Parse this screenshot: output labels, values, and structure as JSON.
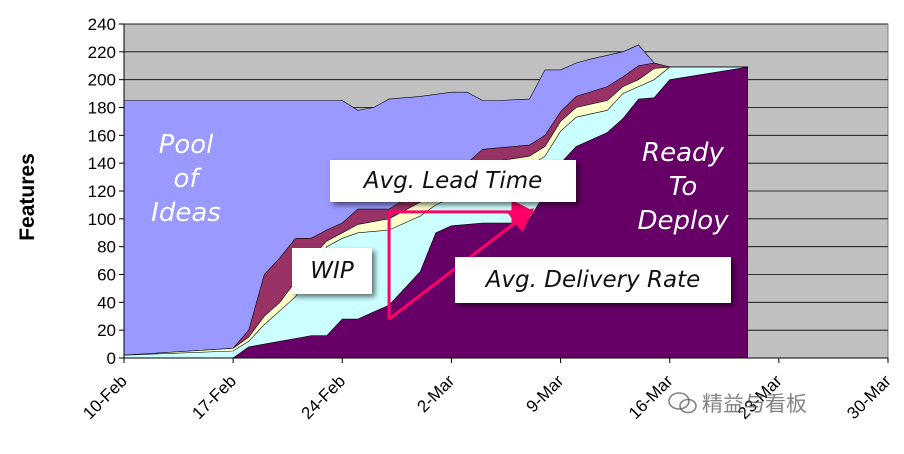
{
  "chart_data": {
    "type": "area",
    "ylabel": "Features",
    "xlabel": "",
    "ylim": [
      0,
      240
    ],
    "yticks": [
      0,
      20,
      40,
      60,
      80,
      100,
      120,
      140,
      160,
      180,
      200,
      220,
      240
    ],
    "categories": [
      "10-Feb",
      "17-Feb",
      "24-Feb",
      "2-Mar",
      "9-Mar",
      "16-Mar",
      "23-Mar",
      "30-Mar"
    ],
    "x_range_days": [
      0,
      49
    ],
    "grid": "horizontal",
    "plot_background": "#c0c0c0",
    "series": [
      {
        "color": "#9999ff",
        "points": [
          [
            0,
            185
          ],
          [
            7,
            185
          ],
          [
            14,
            185
          ],
          [
            15,
            178
          ],
          [
            16,
            180
          ],
          [
            17,
            186
          ],
          [
            19,
            188
          ],
          [
            21,
            191
          ],
          [
            22,
            191
          ],
          [
            23,
            185
          ],
          [
            24,
            185
          ],
          [
            26,
            186
          ],
          [
            27,
            207
          ],
          [
            28,
            207
          ],
          [
            29,
            212
          ],
          [
            30,
            215
          ],
          [
            32,
            220
          ],
          [
            33,
            225
          ],
          [
            34,
            212
          ],
          [
            35,
            209
          ],
          [
            40,
            209
          ]
        ]
      },
      {
        "color": "#993366",
        "points": [
          [
            0,
            2
          ],
          [
            7,
            7
          ],
          [
            8,
            20
          ],
          [
            9,
            60
          ],
          [
            10,
            72
          ],
          [
            11,
            86
          ],
          [
            12,
            86
          ],
          [
            13,
            92
          ],
          [
            14,
            97
          ],
          [
            15,
            107
          ],
          [
            17,
            107
          ],
          [
            19,
            121
          ],
          [
            21,
            130
          ],
          [
            22,
            140
          ],
          [
            23,
            150
          ],
          [
            26,
            153
          ],
          [
            27,
            160
          ],
          [
            28,
            177
          ],
          [
            29,
            188
          ],
          [
            31,
            195
          ],
          [
            32,
            202
          ],
          [
            33,
            210
          ],
          [
            34,
            212
          ],
          [
            35,
            209
          ],
          [
            40,
            209
          ]
        ]
      },
      {
        "color": "#ffffcc",
        "points": [
          [
            0,
            2
          ],
          [
            7,
            7
          ],
          [
            8,
            15
          ],
          [
            9,
            30
          ],
          [
            10,
            40
          ],
          [
            11,
            55
          ],
          [
            12,
            72
          ],
          [
            13,
            84
          ],
          [
            14,
            90
          ],
          [
            15,
            96
          ],
          [
            17,
            100
          ],
          [
            19,
            112
          ],
          [
            21,
            120
          ],
          [
            22,
            130
          ],
          [
            23,
            140
          ],
          [
            26,
            145
          ],
          [
            27,
            152
          ],
          [
            28,
            170
          ],
          [
            29,
            180
          ],
          [
            31,
            185
          ],
          [
            32,
            195
          ],
          [
            33,
            200
          ],
          [
            34,
            208
          ],
          [
            35,
            209
          ],
          [
            40,
            209
          ]
        ]
      },
      {
        "color": "#ccffff",
        "points": [
          [
            0,
            2
          ],
          [
            7,
            5
          ],
          [
            8,
            12
          ],
          [
            9,
            24
          ],
          [
            10,
            34
          ],
          [
            11,
            44
          ],
          [
            12,
            60
          ],
          [
            13,
            80
          ],
          [
            14,
            86
          ],
          [
            15,
            90
          ],
          [
            17,
            92
          ],
          [
            19,
            102
          ],
          [
            20,
            110
          ],
          [
            21,
            115
          ],
          [
            22,
            122
          ],
          [
            23,
            130
          ],
          [
            26,
            138
          ],
          [
            27,
            145
          ],
          [
            28,
            163
          ],
          [
            29,
            173
          ],
          [
            31,
            178
          ],
          [
            32,
            190
          ],
          [
            33,
            195
          ],
          [
            34,
            200
          ],
          [
            35,
            209
          ],
          [
            40,
            209
          ]
        ]
      },
      {
        "color": "#660066",
        "points": [
          [
            0,
            0
          ],
          [
            7,
            0
          ],
          [
            8,
            8
          ],
          [
            10,
            12
          ],
          [
            11,
            14
          ],
          [
            12,
            16
          ],
          [
            13,
            16
          ],
          [
            14,
            28
          ],
          [
            15,
            28
          ],
          [
            17,
            38
          ],
          [
            19,
            62
          ],
          [
            20,
            90
          ],
          [
            21,
            95
          ],
          [
            23,
            97
          ],
          [
            25,
            97
          ],
          [
            26,
            100
          ],
          [
            27,
            118
          ],
          [
            28,
            140
          ],
          [
            29,
            152
          ],
          [
            31,
            162
          ],
          [
            32,
            172
          ],
          [
            33,
            186
          ],
          [
            34,
            187
          ],
          [
            35,
            200
          ],
          [
            40,
            209
          ]
        ]
      }
    ],
    "annotations": {
      "pool": "Pool\nof\nIdeas",
      "ready": "Ready\nTo\nDeploy",
      "wip": "WIP",
      "lead_time": "Avg. Lead Time",
      "delivery_rate": "Avg. Delivery Rate"
    },
    "lead_time_arrow": {
      "from": [
        17,
        105
      ],
      "to": [
        26,
        105
      ]
    },
    "delivery_rate_arrow": {
      "from": [
        17,
        28
      ],
      "to": [
        26,
        105
      ]
    },
    "wip_bracket": {
      "x": 17,
      "y_low": 28,
      "y_high": 105
    },
    "arrow_color": "#ff0066"
  },
  "watermark": {
    "text": "精益与看板"
  }
}
